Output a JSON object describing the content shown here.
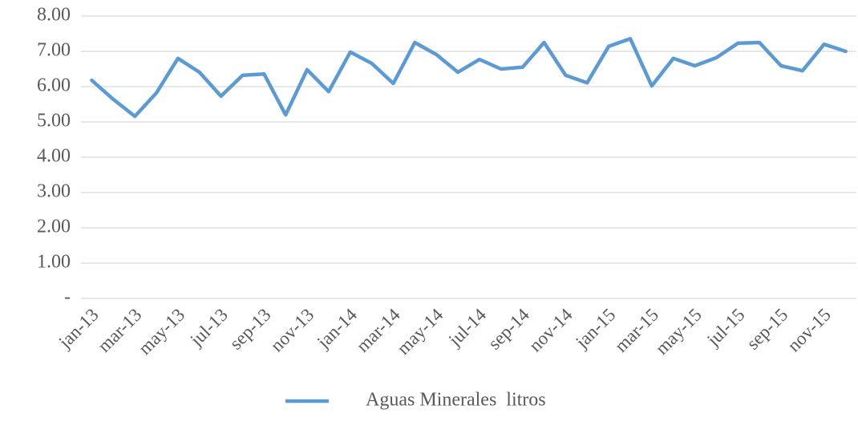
{
  "chart_data": {
    "type": "line",
    "categories": [
      "jan-13",
      null,
      "mar-13",
      null,
      "may-13",
      null,
      "jul-13",
      null,
      "sep-13",
      null,
      "nov-13",
      null,
      "jan-14",
      null,
      "mar-14",
      null,
      "may-14",
      null,
      "jul-14",
      null,
      "sep-14",
      null,
      "nov-14",
      null,
      "jan-15",
      null,
      "mar-15",
      null,
      "may-15",
      null,
      "jul-15",
      null,
      "sep-15",
      null,
      "nov-15",
      null
    ],
    "series": [
      {
        "name": "Aguas Minerales  litros",
        "color": "#5b9bd5",
        "values": [
          6.18,
          5.64,
          5.16,
          5.82,
          6.8,
          6.41,
          5.73,
          6.32,
          6.36,
          5.2,
          6.48,
          5.86,
          6.98,
          6.66,
          6.09,
          7.25,
          6.91,
          6.41,
          6.77,
          6.5,
          6.55,
          7.25,
          6.32,
          6.11,
          7.14,
          7.36,
          6.02,
          6.8,
          6.59,
          6.82,
          7.23,
          7.25,
          6.59,
          6.45,
          7.2,
          7.0
        ]
      }
    ],
    "ylim": [
      0,
      8
    ],
    "yticks": [
      {
        "value": 0,
        "label": "-"
      },
      {
        "value": 1,
        "label": "1.00"
      },
      {
        "value": 2,
        "label": "2.00"
      },
      {
        "value": 3,
        "label": "3.00"
      },
      {
        "value": 4,
        "label": "4.00"
      },
      {
        "value": 5,
        "label": "5.00"
      },
      {
        "value": 6,
        "label": "6.00"
      },
      {
        "value": 7,
        "label": "7.00"
      },
      {
        "value": 8,
        "label": "8.00"
      }
    ],
    "grid": true,
    "legend": "bottom"
  }
}
